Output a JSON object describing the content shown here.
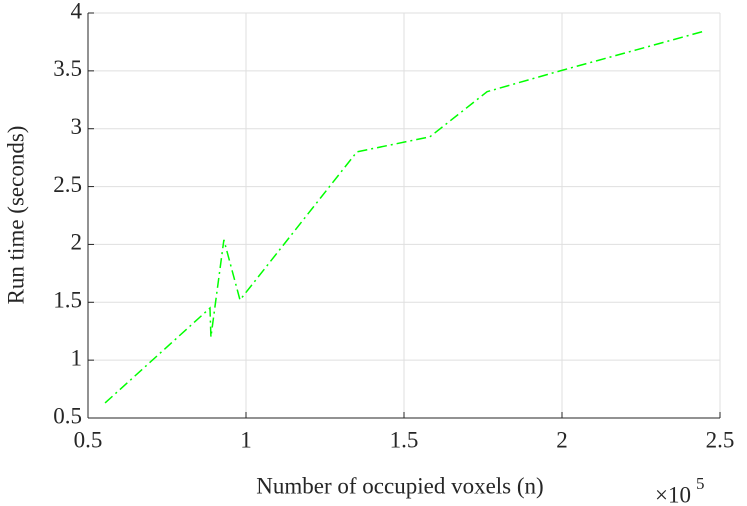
{
  "chart_data": {
    "type": "line",
    "x_label": "Number of occupied voxels (n)",
    "y_label": "Run time (seconds)",
    "x_multiplier": {
      "base": "×10",
      "exponent": "5"
    },
    "x": [
      0.554,
      0.886,
      0.889,
      0.93,
      0.981,
      1.351,
      1.582,
      1.763,
      1.994,
      2.446
    ],
    "series": [
      {
        "color": "#00ff00",
        "values": [
          0.63,
          1.45,
          1.2,
          2.04,
          1.52,
          2.8,
          2.93,
          3.32,
          3.5,
          3.84
        ]
      }
    ],
    "xlim": [
      0.5,
      2.5
    ],
    "xticks": [
      0.5,
      1,
      1.5,
      2,
      2.5
    ],
    "ylim": [
      0.5,
      4
    ],
    "yticks": [
      0.5,
      1,
      1.5,
      2,
      2.5,
      3,
      3.5,
      4
    ],
    "grid": true
  }
}
